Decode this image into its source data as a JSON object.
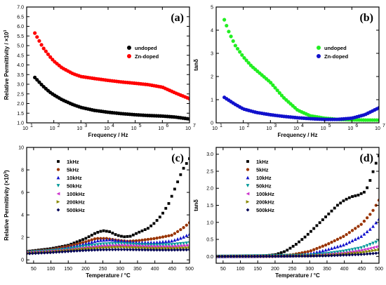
{
  "chart_data": [
    {
      "panel": "(a)",
      "type": "line",
      "xlabel": "Frequency / Hz",
      "ylabel": "Relative Permittivity / ×10",
      "ylabel_sup": "3",
      "xscale": "log",
      "xlim": [
        10,
        10000000
      ],
      "ylim": [
        1.0,
        7.0
      ],
      "x_ticks": [
        10,
        100,
        1000,
        10000,
        100000,
        1000000,
        10000000
      ],
      "x_tick_labels": [
        {
          "base": "10",
          "exp": "1"
        },
        {
          "base": "10",
          "exp": "2"
        },
        {
          "base": "10",
          "exp": "3"
        },
        {
          "base": "10",
          "exp": "4"
        },
        {
          "base": "10",
          "exp": "5"
        },
        {
          "base": "10",
          "exp": "6"
        },
        {
          "base": "10",
          "exp": "7"
        }
      ],
      "y_ticks": [
        "1.0",
        "1.5",
        "2.0",
        "2.5",
        "3.0",
        "3.5",
        "4.0",
        "4.5",
        "5.0",
        "5.5",
        "6.0",
        "6.5",
        "7.0"
      ],
      "legend_position": "right",
      "series": [
        {
          "name": "undoped",
          "color": "#000000",
          "x": [
            20,
            40,
            70,
            100,
            200,
            500,
            1000,
            3000,
            10000,
            30000,
            100000,
            300000,
            1000000,
            3000000,
            10000000
          ],
          "y": [
            3.35,
            2.9,
            2.6,
            2.45,
            2.2,
            1.95,
            1.8,
            1.65,
            1.55,
            1.48,
            1.42,
            1.38,
            1.35,
            1.3,
            1.2
          ]
        },
        {
          "name": "Zn-doped",
          "color": "#ff0000",
          "x": [
            20,
            40,
            70,
            100,
            200,
            500,
            1000,
            3000,
            10000,
            30000,
            100000,
            300000,
            1000000,
            3000000,
            10000000
          ],
          "y": [
            5.65,
            4.9,
            4.45,
            4.2,
            3.85,
            3.55,
            3.4,
            3.3,
            3.2,
            3.12,
            3.05,
            2.98,
            2.85,
            2.55,
            2.25
          ]
        }
      ]
    },
    {
      "panel": "(b)",
      "type": "line",
      "xlabel": "Frequency / Hz",
      "ylabel": "tanδ",
      "xscale": "log",
      "xlim": [
        10,
        10000000
      ],
      "ylim": [
        0,
        5
      ],
      "x_ticks": [
        10,
        100,
        1000,
        10000,
        100000,
        1000000,
        10000000
      ],
      "x_tick_labels": [
        {
          "base": "10",
          "exp": "1"
        },
        {
          "base": "10",
          "exp": "2"
        },
        {
          "base": "10",
          "exp": "3"
        },
        {
          "base": "10",
          "exp": "4"
        },
        {
          "base": "10",
          "exp": "5"
        },
        {
          "base": "10",
          "exp": "6"
        },
        {
          "base": "10",
          "exp": "7"
        }
      ],
      "y_ticks": [
        "0",
        "1",
        "2",
        "3",
        "4",
        "5"
      ],
      "legend_position": "right",
      "series": [
        {
          "name": "undoped",
          "color": "#22ee22",
          "x": [
            20,
            30,
            50,
            100,
            200,
            500,
            1000,
            3000,
            10000,
            30000,
            100000,
            300000,
            1000000,
            3000000,
            10000000
          ],
          "y": [
            4.45,
            3.9,
            3.35,
            2.85,
            2.45,
            2.05,
            1.75,
            1.1,
            0.55,
            0.3,
            0.2,
            0.15,
            0.13,
            0.12,
            0.12
          ]
        },
        {
          "name": "Zn-doped",
          "color": "#1111cc",
          "x": [
            20,
            50,
            100,
            300,
            1000,
            3000,
            10000,
            30000,
            100000,
            300000,
            1000000,
            3000000,
            10000000
          ],
          "y": [
            1.1,
            0.8,
            0.6,
            0.45,
            0.35,
            0.28,
            0.22,
            0.18,
            0.15,
            0.15,
            0.2,
            0.35,
            0.65
          ]
        }
      ]
    },
    {
      "panel": "(c)",
      "type": "line",
      "xlabel": "Temperature / °C",
      "ylabel": "Relative Permittivity (×10",
      "ylabel_sup": "3",
      "ylabel_suffix": ")",
      "xlim": [
        30,
        500
      ],
      "ylim": [
        -0.3,
        10
      ],
      "x_ticks": [
        50,
        100,
        150,
        200,
        250,
        300,
        350,
        400,
        450,
        500
      ],
      "y_ticks": [
        0,
        2,
        4,
        6,
        8,
        10
      ],
      "legend_position": "top-left",
      "series": [
        {
          "name": "1kHz",
          "color": "#000000",
          "marker": "square",
          "x": [
            30,
            100,
            150,
            200,
            230,
            250,
            270,
            290,
            310,
            330,
            350,
            380,
            400,
            420,
            440,
            460,
            480,
            500
          ],
          "y": [
            0.75,
            1.0,
            1.3,
            1.9,
            2.4,
            2.6,
            2.5,
            2.2,
            2.05,
            2.1,
            2.4,
            2.8,
            3.3,
            4.0,
            5.0,
            6.5,
            8.0,
            9.0
          ]
        },
        {
          "name": "5kHz",
          "color": "#993300",
          "marker": "circle",
          "x": [
            30,
            100,
            150,
            200,
            230,
            260,
            290,
            320,
            350,
            400,
            450,
            480,
            500
          ],
          "y": [
            0.7,
            0.9,
            1.2,
            1.6,
            1.9,
            1.9,
            1.75,
            1.65,
            1.7,
            1.9,
            2.2,
            2.8,
            3.3
          ]
        },
        {
          "name": "10kHz",
          "color": "#1111cc",
          "marker": "triangle-up",
          "x": [
            30,
            100,
            150,
            200,
            240,
            270,
            300,
            350,
            400,
            450,
            480,
            500
          ],
          "y": [
            0.7,
            0.85,
            1.1,
            1.45,
            1.75,
            1.8,
            1.7,
            1.55,
            1.55,
            1.7,
            2.0,
            2.3
          ]
        },
        {
          "name": "50kHz",
          "color": "#009999",
          "marker": "triangle-down",
          "x": [
            30,
            100,
            150,
            200,
            250,
            300,
            350,
            400,
            450,
            500
          ],
          "y": [
            0.65,
            0.8,
            0.95,
            1.2,
            1.4,
            1.45,
            1.35,
            1.3,
            1.35,
            1.5
          ]
        },
        {
          "name": "100kHz",
          "color": "#cc33cc",
          "marker": "triangle-left",
          "x": [
            30,
            100,
            150,
            200,
            250,
            300,
            350,
            400,
            450,
            500
          ],
          "y": [
            0.65,
            0.78,
            0.9,
            1.1,
            1.25,
            1.3,
            1.25,
            1.2,
            1.2,
            1.3
          ]
        },
        {
          "name": "200kHz",
          "color": "#888800",
          "marker": "triangle-right",
          "x": [
            30,
            100,
            150,
            200,
            250,
            300,
            350,
            400,
            450,
            500
          ],
          "y": [
            0.6,
            0.72,
            0.85,
            1.0,
            1.1,
            1.15,
            1.1,
            1.05,
            1.05,
            1.1
          ]
        },
        {
          "name": "500kHz",
          "color": "#000055",
          "marker": "diamond",
          "x": [
            30,
            100,
            150,
            200,
            250,
            300,
            350,
            400,
            450,
            500
          ],
          "y": [
            0.55,
            0.65,
            0.75,
            0.85,
            0.9,
            0.92,
            0.9,
            0.88,
            0.88,
            0.9
          ]
        }
      ]
    },
    {
      "panel": "(d)",
      "type": "line",
      "xlabel": "Temperature / °C",
      "ylabel": "tanδ",
      "xlim": [
        30,
        500
      ],
      "ylim": [
        -0.2,
        3.2
      ],
      "x_ticks": [
        50,
        100,
        150,
        200,
        250,
        300,
        350,
        400,
        450,
        500
      ],
      "y_ticks": [
        "0.0",
        "0.5",
        "1.0",
        "1.5",
        "2.0",
        "2.5",
        "3.0"
      ],
      "legend_position": "top-left",
      "series": [
        {
          "name": "1kHz",
          "color": "#000000",
          "marker": "square",
          "x": [
            30,
            150,
            200,
            230,
            260,
            290,
            320,
            350,
            380,
            400,
            420,
            440,
            460,
            470,
            480,
            490,
            500
          ],
          "y": [
            0.0,
            0.0,
            0.05,
            0.15,
            0.35,
            0.6,
            0.9,
            1.2,
            1.5,
            1.65,
            1.75,
            1.8,
            1.9,
            2.1,
            2.4,
            2.7,
            2.95
          ]
        },
        {
          "name": "5kHz",
          "color": "#993300",
          "marker": "circle",
          "x": [
            30,
            200,
            250,
            300,
            350,
            400,
            450,
            480,
            500
          ],
          "y": [
            0.0,
            0.0,
            0.05,
            0.15,
            0.35,
            0.6,
            0.95,
            1.3,
            1.65
          ]
        },
        {
          "name": "10kHz",
          "color": "#1111cc",
          "marker": "triangle-up",
          "x": [
            30,
            250,
            300,
            350,
            400,
            450,
            480,
            500
          ],
          "y": [
            0.0,
            0.02,
            0.08,
            0.2,
            0.35,
            0.6,
            0.85,
            1.1
          ]
        },
        {
          "name": "50kHz",
          "color": "#009999",
          "marker": "triangle-down",
          "x": [
            30,
            300,
            350,
            400,
            450,
            500
          ],
          "y": [
            0.0,
            0.03,
            0.08,
            0.15,
            0.25,
            0.45
          ]
        },
        {
          "name": "100kHz",
          "color": "#cc33cc",
          "marker": "triangle-left",
          "x": [
            30,
            300,
            350,
            400,
            450,
            500
          ],
          "y": [
            0.0,
            0.02,
            0.06,
            0.1,
            0.18,
            0.3
          ]
        },
        {
          "name": "200kHz",
          "color": "#888800",
          "marker": "triangle-right",
          "x": [
            30,
            300,
            350,
            400,
            450,
            500
          ],
          "y": [
            0.0,
            0.02,
            0.04,
            0.07,
            0.12,
            0.2
          ]
        },
        {
          "name": "500kHz",
          "color": "#000055",
          "marker": "diamond",
          "x": [
            30,
            300,
            350,
            400,
            450,
            500
          ],
          "y": [
            0.0,
            0.01,
            0.02,
            0.04,
            0.06,
            0.1
          ]
        }
      ]
    }
  ]
}
